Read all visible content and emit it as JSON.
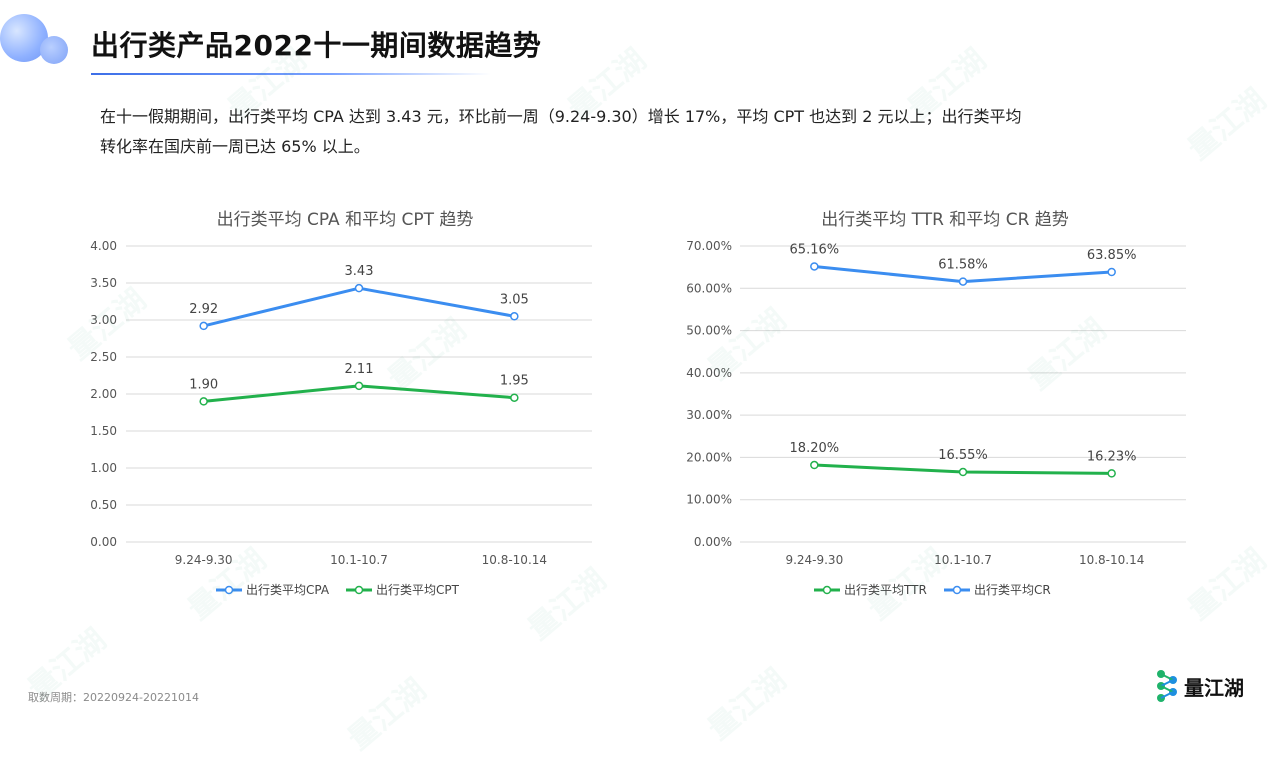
{
  "page": {
    "title": "出行类产品2022十一期间数据趋势",
    "summary_line1": "在十一假期期间，出行类平均 CPA 达到 3.43 元，环比前一周（9.24-9.30）增长 17%，平均 CPT 也达到 2 元以上；出行类平均",
    "summary_line2": "转化率在国庆前一周已达 65% 以上。",
    "footer_note": "取数周期：20220924-20221014",
    "logo_text": "量江湖",
    "watermark_text": "量江湖"
  },
  "chart_data": [
    {
      "type": "line",
      "title": "出行类平均 CPA 和平均 CPT 趋势",
      "categories": [
        "9.24-9.30",
        "10.1-10.7",
        "10.8-10.14"
      ],
      "ylim": [
        0,
        4
      ],
      "yticks": [
        "0.00",
        "0.50",
        "1.00",
        "1.50",
        "2.00",
        "2.50",
        "3.00",
        "3.50",
        "4.00"
      ],
      "series": [
        {
          "name": "出行类平均CPA",
          "values": [
            2.92,
            3.43,
            3.05
          ],
          "labels": [
            "2.92",
            "3.43",
            "3.05"
          ],
          "color": "#3b8df0"
        },
        {
          "name": "出行类平均CPT",
          "values": [
            1.9,
            2.11,
            1.95
          ],
          "labels": [
            "1.90",
            "2.11",
            "1.95"
          ],
          "color": "#22b14c"
        }
      ],
      "legend": "bottom",
      "grid": true
    },
    {
      "type": "line",
      "title": "出行类平均 TTR 和平均 CR 趋势",
      "categories": [
        "9.24-9.30",
        "10.1-10.7",
        "10.8-10.14"
      ],
      "ylim": [
        0,
        70
      ],
      "yticks": [
        "0.00%",
        "10.00%",
        "20.00%",
        "30.00%",
        "40.00%",
        "50.00%",
        "60.00%",
        "70.00%"
      ],
      "series": [
        {
          "name": "出行类平均TTR",
          "values": [
            18.2,
            16.55,
            16.23
          ],
          "labels": [
            "18.20%",
            "16.55%",
            "16.23%"
          ],
          "color": "#22b14c"
        },
        {
          "name": "出行类平均CR",
          "values": [
            65.16,
            61.58,
            63.85
          ],
          "labels": [
            "65.16%",
            "61.58%",
            "63.85%"
          ],
          "color": "#3b8df0"
        }
      ],
      "legend": "bottom",
      "grid": true
    }
  ],
  "colors": {
    "accent": "#3d6fe8",
    "grid": "#d9d9d9",
    "axis_text": "#555555"
  }
}
